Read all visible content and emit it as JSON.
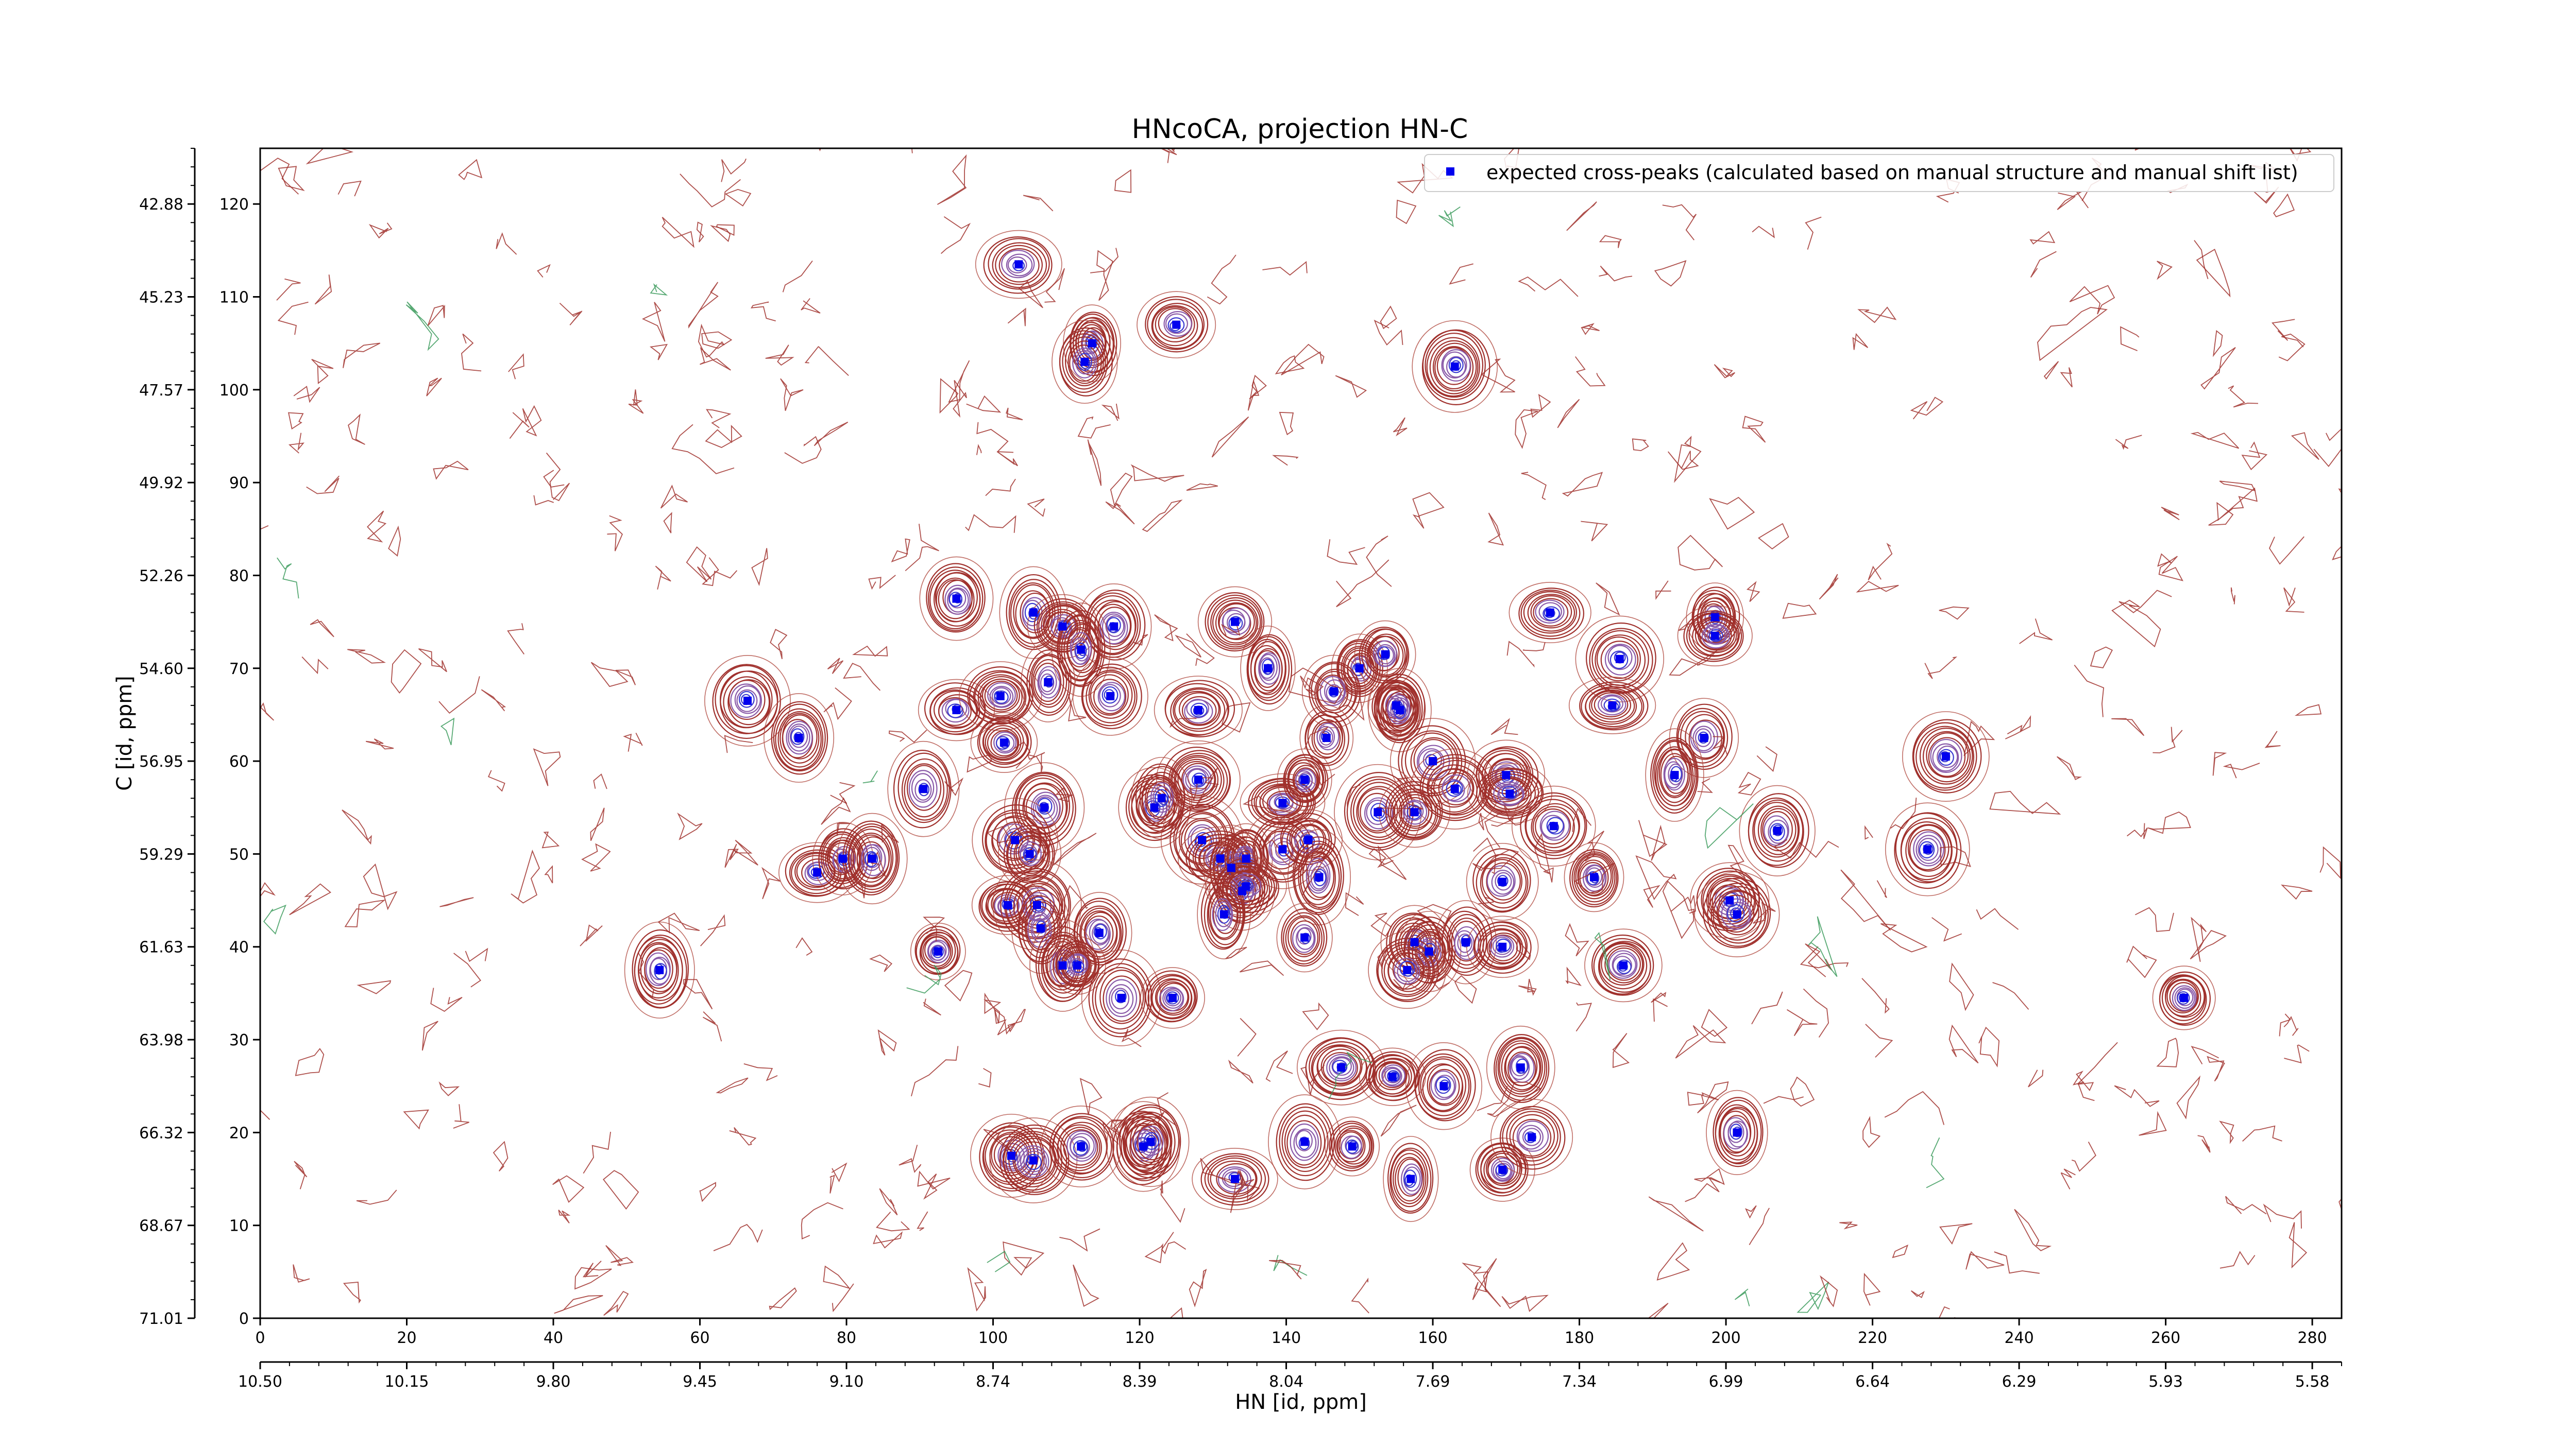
{
  "chart_data": {
    "type": "scatter",
    "title": "HNcoCA, projection HN-C",
    "xlabel": "HN [id, ppm]",
    "ylabel": "C [id, ppm]",
    "xlim": [
      0,
      284
    ],
    "ylim": [
      0,
      126
    ],
    "x_ticks": [
      0,
      20,
      40,
      60,
      80,
      100,
      120,
      140,
      160,
      180,
      200,
      220,
      240,
      260,
      280
    ],
    "y_ticks": [
      0,
      10,
      20,
      30,
      40,
      50,
      60,
      70,
      80,
      90,
      100,
      110,
      120
    ],
    "x_ppm_ticks": [
      {
        "at": 0,
        "label": "10.50"
      },
      {
        "at": 20,
        "label": "10.15"
      },
      {
        "at": 40,
        "label": "9.80"
      },
      {
        "at": 60,
        "label": "9.45"
      },
      {
        "at": 80,
        "label": "9.10"
      },
      {
        "at": 100,
        "label": "8.74"
      },
      {
        "at": 120,
        "label": "8.39"
      },
      {
        "at": 140,
        "label": "8.04"
      },
      {
        "at": 160,
        "label": "7.69"
      },
      {
        "at": 180,
        "label": "7.34"
      },
      {
        "at": 200,
        "label": "6.99"
      },
      {
        "at": 220,
        "label": "6.64"
      },
      {
        "at": 240,
        "label": "6.29"
      },
      {
        "at": 260,
        "label": "5.93"
      },
      {
        "at": 280,
        "label": "5.58"
      }
    ],
    "y_ppm_ticks": [
      {
        "at": 0,
        "label": "71.01"
      },
      {
        "at": 10,
        "label": "68.67"
      },
      {
        "at": 20,
        "label": "66.32"
      },
      {
        "at": 30,
        "label": "63.98"
      },
      {
        "at": 40,
        "label": "61.63"
      },
      {
        "at": 50,
        "label": "59.29"
      },
      {
        "at": 60,
        "label": "56.95"
      },
      {
        "at": 70,
        "label": "54.60"
      },
      {
        "at": 80,
        "label": "52.26"
      },
      {
        "at": 90,
        "label": "49.92"
      },
      {
        "at": 100,
        "label": "47.57"
      },
      {
        "at": 110,
        "label": "45.23"
      },
      {
        "at": 120,
        "label": "42.88"
      }
    ],
    "grid": false,
    "legend_position": "top-right",
    "series": [
      {
        "name": "expected cross-peaks (calculated based on manual structure and manual shift list)",
        "color": "#0000ee",
        "marker": "square",
        "points": [
          [
            103.5,
            113.5
          ],
          [
            113.5,
            105
          ],
          [
            112.5,
            103
          ],
          [
            125,
            107
          ],
          [
            163,
            102.5
          ],
          [
            95,
            77.5
          ],
          [
            105.5,
            76
          ],
          [
            109.5,
            74.5
          ],
          [
            116.5,
            74.5
          ],
          [
            112,
            72
          ],
          [
            133,
            75
          ],
          [
            176,
            76
          ],
          [
            198.5,
            75.5
          ],
          [
            198.5,
            73.5
          ],
          [
            66.5,
            66.5
          ],
          [
            73.5,
            62.5
          ],
          [
            95,
            65.5
          ],
          [
            101,
            67
          ],
          [
            107.5,
            68.5
          ],
          [
            116,
            67
          ],
          [
            101.5,
            62
          ],
          [
            128,
            65.5
          ],
          [
            137.5,
            70
          ],
          [
            150,
            70
          ],
          [
            153.5,
            71.5
          ],
          [
            146.5,
            67.5
          ],
          [
            155,
            66
          ],
          [
            155.5,
            65.5
          ],
          [
            185.5,
            71
          ],
          [
            184.5,
            66
          ],
          [
            197,
            62.5
          ],
          [
            145.5,
            62.5
          ],
          [
            90.5,
            57
          ],
          [
            128,
            58
          ],
          [
            107,
            55
          ],
          [
            122,
            55
          ],
          [
            123,
            56
          ],
          [
            139.5,
            55.5
          ],
          [
            142.5,
            58
          ],
          [
            160,
            60
          ],
          [
            163,
            57
          ],
          [
            170,
            58.5
          ],
          [
            170.5,
            56.5
          ],
          [
            152.5,
            54.5
          ],
          [
            157.5,
            54.5
          ],
          [
            193,
            58.5
          ],
          [
            230,
            60.5
          ],
          [
            103,
            51.5
          ],
          [
            105,
            50
          ],
          [
            128.5,
            51.5
          ],
          [
            131,
            49.5
          ],
          [
            132.5,
            48.5
          ],
          [
            134.5,
            49.5
          ],
          [
            139.5,
            50.5
          ],
          [
            143,
            51.5
          ],
          [
            144.5,
            47.5
          ],
          [
            76,
            48
          ],
          [
            79.5,
            49.5
          ],
          [
            83.5,
            49.5
          ],
          [
            134,
            46
          ],
          [
            134.5,
            46.5
          ],
          [
            169.5,
            47
          ],
          [
            176.5,
            53
          ],
          [
            182,
            47.5
          ],
          [
            207,
            52.5
          ],
          [
            227.5,
            50.5
          ],
          [
            102,
            44.5
          ],
          [
            106,
            44.5
          ],
          [
            106.5,
            42
          ],
          [
            114.5,
            41.5
          ],
          [
            131.5,
            43.5
          ],
          [
            142.5,
            41
          ],
          [
            157.5,
            40.5
          ],
          [
            159.5,
            39.5
          ],
          [
            164.5,
            40.5
          ],
          [
            169.5,
            40
          ],
          [
            200.5,
            45
          ],
          [
            201.5,
            43.5
          ],
          [
            92.5,
            39.5
          ],
          [
            109.5,
            38
          ],
          [
            111.5,
            38
          ],
          [
            156.5,
            37.5
          ],
          [
            186,
            38
          ],
          [
            54.5,
            37.5
          ],
          [
            117.5,
            34.5
          ],
          [
            124.5,
            34.5
          ],
          [
            262.5,
            34.5
          ],
          [
            147.5,
            27
          ],
          [
            154.5,
            26
          ],
          [
            161.5,
            25
          ],
          [
            172,
            27
          ],
          [
            102.5,
            17.5
          ],
          [
            105.5,
            17
          ],
          [
            112,
            18.5
          ],
          [
            120.5,
            18.5
          ],
          [
            121.5,
            19
          ],
          [
            133,
            15
          ],
          [
            142.5,
            19
          ],
          [
            149,
            18.5
          ],
          [
            157,
            15
          ],
          [
            169.5,
            16
          ],
          [
            173.5,
            19.5
          ],
          [
            201.5,
            20
          ]
        ]
      }
    ]
  }
}
